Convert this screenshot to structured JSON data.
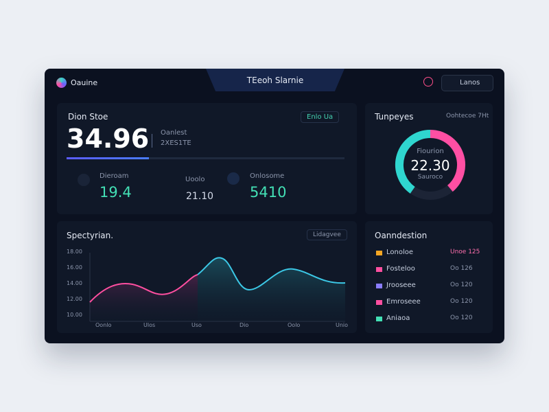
{
  "header": {
    "brand": "Oauine",
    "tab": "TEeoh Slarnie",
    "button": "Lanos"
  },
  "summary": {
    "title": "Dion Stoe",
    "badge": "Enlo Ua",
    "value": "34.96",
    "side_top": "Oanlest",
    "side_bottom": "2XES1TE",
    "metrics": [
      {
        "label": "Dieroam",
        "value": "19.4"
      },
      {
        "label": "Uoolo",
        "value": "21.10"
      },
      {
        "label": "Onlosome",
        "value": "5410"
      }
    ]
  },
  "gauge": {
    "title": "Tunpeyes",
    "note": "Oohtecoe 7Ht",
    "value": "22.30",
    "label_top": "Fiourion",
    "label_bottom": "Sauroco"
  },
  "trend": {
    "title": "Spectyrian.",
    "button": "Lidagvee",
    "y_labels": [
      "18.00",
      "16.00",
      "14.00",
      "12.00",
      "10.00"
    ],
    "x_labels": [
      "Oonlo",
      "Ulos",
      "Uso",
      "Dio",
      "Oolo",
      "Unio"
    ]
  },
  "list": {
    "title": "Oanndestion",
    "rows": [
      [
        "Lonoloe",
        "Unoe 125"
      ],
      [
        "Fosteloo",
        "Oo 126"
      ],
      [
        "Jrooseee",
        "Oo 120"
      ],
      [
        "Emroseee",
        "Oo 120"
      ],
      [
        "Aniaoa",
        "Oo 120"
      ]
    ]
  }
}
